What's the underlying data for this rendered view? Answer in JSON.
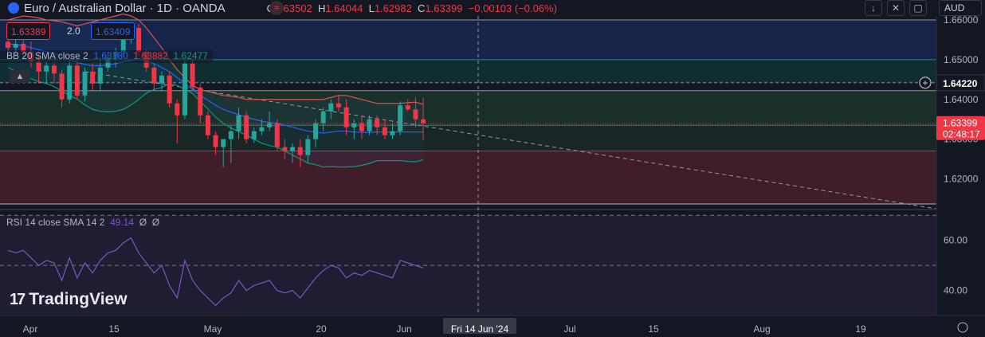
{
  "header": {
    "symbol_title": "Euro / Australian Dollar · 1D · OANDA",
    "ohlc": {
      "o_label": "O",
      "o": "1.63502",
      "h_label": "H",
      "h": "1.64044",
      "l_label": "L",
      "l": "1.62982",
      "c_label": "C",
      "c": "1.63399",
      "change": "−0.00103 (−0.06%)"
    },
    "currency": "AUD"
  },
  "trade_panel": {
    "sell": "1.63389",
    "spread": "2.0",
    "buy": "1.63409"
  },
  "bb_indicator": {
    "label": "BB 20 SMA close 2",
    "basis": "1.63180",
    "upper": "1.63882",
    "lower": "1.62477"
  },
  "rsi_indicator": {
    "label": "RSI 14 close SMA 14 2",
    "value": "49.14",
    "extra1": "Ø",
    "extra2": "Ø"
  },
  "price_axis": {
    "ticks": [
      "1.66000",
      "1.65000",
      "1.64000",
      "1.63000",
      "1.62000"
    ],
    "marker_label": "1.64220",
    "last_price": "1.63399",
    "countdown": "02:48:17"
  },
  "rsi_axis": {
    "ticks": [
      "60.00",
      "40.00"
    ]
  },
  "time_axis": {
    "ticks": [
      "Apr",
      "15",
      "May",
      "20",
      "Jun",
      "Jul",
      "15",
      "Aug",
      "19"
    ],
    "crosshair_date": "Fri 14 Jun '24"
  },
  "logo_text": "TradingView",
  "colors": {
    "up": "#26a69a",
    "down": "#f23645",
    "bb_upper": "#e0524f",
    "bb_basis": "#2962ff",
    "bb_lower": "#089981",
    "rsi": "#7e57c2",
    "background": "#131722"
  },
  "chart_data": {
    "type": "candlestick",
    "title": "Euro / Australian Dollar · 1D · OANDA",
    "y_range": [
      1.6125,
      1.661
    ],
    "candles": [
      {
        "o": 1.6545,
        "h": 1.656,
        "l": 1.652,
        "c": 1.653
      },
      {
        "o": 1.653,
        "h": 1.655,
        "l": 1.651,
        "c": 1.654
      },
      {
        "o": 1.654,
        "h": 1.656,
        "l": 1.651,
        "c": 1.652
      },
      {
        "o": 1.652,
        "h": 1.6545,
        "l": 1.648,
        "c": 1.6495
      },
      {
        "o": 1.6495,
        "h": 1.652,
        "l": 1.644,
        "c": 1.647
      },
      {
        "o": 1.647,
        "h": 1.6495,
        "l": 1.644,
        "c": 1.6485
      },
      {
        "o": 1.6485,
        "h": 1.649,
        "l": 1.644,
        "c": 1.6465
      },
      {
        "o": 1.6465,
        "h": 1.6475,
        "l": 1.638,
        "c": 1.64
      },
      {
        "o": 1.64,
        "h": 1.65,
        "l": 1.639,
        "c": 1.6485
      },
      {
        "o": 1.6485,
        "h": 1.65,
        "l": 1.64,
        "c": 1.641
      },
      {
        "o": 1.641,
        "h": 1.648,
        "l": 1.6395,
        "c": 1.647
      },
      {
        "o": 1.647,
        "h": 1.649,
        "l": 1.642,
        "c": 1.644
      },
      {
        "o": 1.644,
        "h": 1.65,
        "l": 1.642,
        "c": 1.648
      },
      {
        "o": 1.648,
        "h": 1.652,
        "l": 1.647,
        "c": 1.6505
      },
      {
        "o": 1.6505,
        "h": 1.653,
        "l": 1.648,
        "c": 1.652
      },
      {
        "o": 1.652,
        "h": 1.657,
        "l": 1.651,
        "c": 1.656
      },
      {
        "o": 1.657,
        "h": 1.659,
        "l": 1.654,
        "c": 1.658
      },
      {
        "o": 1.658,
        "h": 1.659,
        "l": 1.651,
        "c": 1.652
      },
      {
        "o": 1.652,
        "h": 1.6525,
        "l": 1.647,
        "c": 1.648
      },
      {
        "o": 1.648,
        "h": 1.649,
        "l": 1.642,
        "c": 1.644
      },
      {
        "o": 1.644,
        "h": 1.647,
        "l": 1.642,
        "c": 1.646
      },
      {
        "o": 1.646,
        "h": 1.647,
        "l": 1.638,
        "c": 1.639
      },
      {
        "o": 1.639,
        "h": 1.64,
        "l": 1.629,
        "c": 1.636
      },
      {
        "o": 1.636,
        "h": 1.65,
        "l": 1.635,
        "c": 1.649
      },
      {
        "o": 1.649,
        "h": 1.65,
        "l": 1.642,
        "c": 1.643
      },
      {
        "o": 1.643,
        "h": 1.644,
        "l": 1.634,
        "c": 1.636
      },
      {
        "o": 1.636,
        "h": 1.637,
        "l": 1.63,
        "c": 1.631
      },
      {
        "o": 1.631,
        "h": 1.632,
        "l": 1.626,
        "c": 1.628
      },
      {
        "o": 1.628,
        "h": 1.63,
        "l": 1.623,
        "c": 1.63
      },
      {
        "o": 1.63,
        "h": 1.6335,
        "l": 1.624,
        "c": 1.632
      },
      {
        "o": 1.632,
        "h": 1.638,
        "l": 1.63,
        "c": 1.636
      },
      {
        "o": 1.636,
        "h": 1.637,
        "l": 1.629,
        "c": 1.63
      },
      {
        "o": 1.63,
        "h": 1.633,
        "l": 1.629,
        "c": 1.632
      },
      {
        "o": 1.632,
        "h": 1.635,
        "l": 1.631,
        "c": 1.633
      },
      {
        "o": 1.633,
        "h": 1.637,
        "l": 1.632,
        "c": 1.634
      },
      {
        "o": 1.634,
        "h": 1.635,
        "l": 1.627,
        "c": 1.628
      },
      {
        "o": 1.628,
        "h": 1.63,
        "l": 1.625,
        "c": 1.627
      },
      {
        "o": 1.627,
        "h": 1.629,
        "l": 1.624,
        "c": 1.628
      },
      {
        "o": 1.628,
        "h": 1.63,
        "l": 1.623,
        "c": 1.626
      },
      {
        "o": 1.626,
        "h": 1.631,
        "l": 1.624,
        "c": 1.63
      },
      {
        "o": 1.63,
        "h": 1.635,
        "l": 1.628,
        "c": 1.634
      },
      {
        "o": 1.634,
        "h": 1.638,
        "l": 1.632,
        "c": 1.637
      },
      {
        "o": 1.637,
        "h": 1.64,
        "l": 1.635,
        "c": 1.639
      },
      {
        "o": 1.639,
        "h": 1.641,
        "l": 1.637,
        "c": 1.638
      },
      {
        "o": 1.638,
        "h": 1.64,
        "l": 1.631,
        "c": 1.633
      },
      {
        "o": 1.633,
        "h": 1.635,
        "l": 1.63,
        "c": 1.634
      },
      {
        "o": 1.634,
        "h": 1.636,
        "l": 1.63,
        "c": 1.632
      },
      {
        "o": 1.632,
        "h": 1.636,
        "l": 1.631,
        "c": 1.635
      },
      {
        "o": 1.635,
        "h": 1.636,
        "l": 1.631,
        "c": 1.633
      },
      {
        "o": 1.633,
        "h": 1.635,
        "l": 1.63,
        "c": 1.631
      },
      {
        "o": 1.631,
        "h": 1.634,
        "l": 1.63,
        "c": 1.632
      },
      {
        "o": 1.632,
        "h": 1.6395,
        "l": 1.631,
        "c": 1.6385
      },
      {
        "o": 1.6385,
        "h": 1.64,
        "l": 1.637,
        "c": 1.6375
      },
      {
        "o": 1.6375,
        "h": 1.6405,
        "l": 1.633,
        "c": 1.635
      },
      {
        "o": 1.635,
        "h": 1.6404,
        "l": 1.6298,
        "c": 1.634
      }
    ],
    "bb_upper": [
      1.66,
      1.6605,
      1.661,
      1.6608,
      1.6605,
      1.66,
      1.6598,
      1.6595,
      1.659,
      1.6585,
      1.659,
      1.6595,
      1.66,
      1.6605,
      1.661,
      1.6615,
      1.661,
      1.66,
      1.658,
      1.6555,
      1.653,
      1.65,
      1.6475,
      1.6455,
      1.6435,
      1.6425,
      1.642,
      1.6415,
      1.641,
      1.6408,
      1.6405,
      1.64,
      1.64,
      1.64,
      1.64,
      1.64,
      1.64,
      1.64,
      1.64,
      1.64,
      1.64,
      1.64,
      1.6405,
      1.641,
      1.641,
      1.6405,
      1.64,
      1.6395,
      1.639,
      1.639,
      1.639,
      1.639,
      1.6392,
      1.6393,
      1.6388
    ],
    "bb_basis": [
      1.654,
      1.6538,
      1.6535,
      1.653,
      1.6525,
      1.652,
      1.6515,
      1.6508,
      1.65,
      1.6493,
      1.6488,
      1.6485,
      1.6485,
      1.6487,
      1.649,
      1.6495,
      1.6498,
      1.65,
      1.6498,
      1.649,
      1.648,
      1.647,
      1.6455,
      1.644,
      1.6425,
      1.641,
      1.6398,
      1.6385,
      1.6375,
      1.6368,
      1.6362,
      1.6355,
      1.635,
      1.6345,
      1.6342,
      1.634,
      1.6335,
      1.633,
      1.6325,
      1.632,
      1.6318,
      1.6315,
      1.6318,
      1.632,
      1.632,
      1.6318,
      1.6317,
      1.6317,
      1.6318,
      1.6318,
      1.6318,
      1.6318,
      1.6318,
      1.6318,
      1.6318
    ],
    "bb_lower": [
      1.648,
      1.6471,
      1.646,
      1.6452,
      1.6445,
      1.644,
      1.6432,
      1.6421,
      1.641,
      1.6401,
      1.6386,
      1.6375,
      1.637,
      1.6369,
      1.637,
      1.6375,
      1.6386,
      1.64,
      1.6416,
      1.6425,
      1.643,
      1.644,
      1.6435,
      1.6425,
      1.6415,
      1.6395,
      1.6376,
      1.6355,
      1.634,
      1.6328,
      1.6319,
      1.631,
      1.63,
      1.629,
      1.6284,
      1.628,
      1.627,
      1.626,
      1.625,
      1.624,
      1.6236,
      1.623,
      1.6231,
      1.623,
      1.623,
      1.6231,
      1.6234,
      1.6239,
      1.6246,
      1.6246,
      1.6246,
      1.6246,
      1.6244,
      1.6243,
      1.6248
    ],
    "rsi": [
      56,
      55,
      56,
      53,
      50,
      52,
      51,
      44,
      53,
      45,
      51,
      47,
      52,
      55,
      56,
      59,
      61,
      55,
      51,
      47,
      50,
      42,
      37,
      52,
      44,
      40,
      37,
      34,
      37,
      39,
      44,
      40,
      42,
      43,
      44,
      40,
      39,
      40,
      37,
      41,
      45,
      48,
      50,
      49,
      45,
      47,
      46,
      48,
      47,
      46,
      45,
      52,
      51,
      50,
      49
    ],
    "rsi_range": [
      30,
      72
    ],
    "horizontal_levels": [
      1.66,
      1.65,
      1.6442,
      1.6422,
      1.6335,
      1.627
    ],
    "trendline": {
      "from": 1.647,
      "to": 1.6125
    }
  }
}
